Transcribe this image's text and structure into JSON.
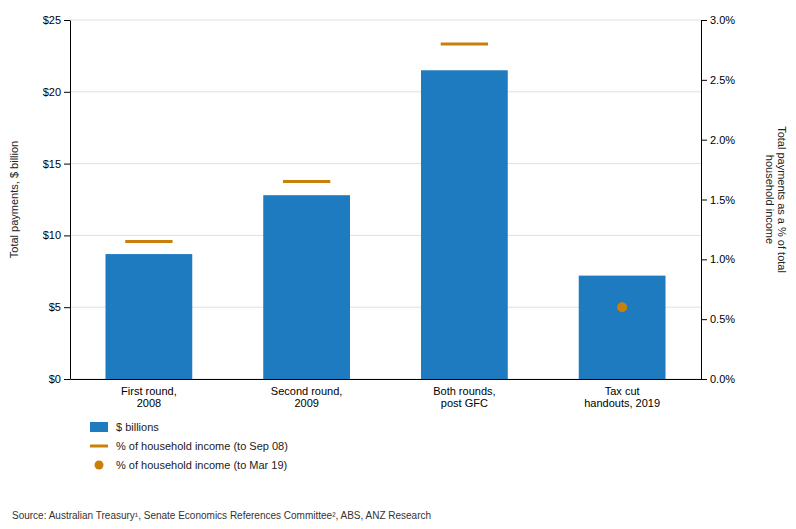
{
  "chart_data": {
    "type": "bar",
    "categories": [
      "First round,\n2008",
      "Second round,\n2009",
      "Both rounds,\npost GFC",
      "Tax cut\nhandouts, 2019"
    ],
    "series": [
      {
        "name": "$ billions",
        "type": "bar",
        "color": "#1f7bbf",
        "values": [
          8.7,
          12.8,
          21.5,
          7.2
        ]
      },
      {
        "name": "% of household income (to Sep 08)",
        "type": "scatter",
        "marker": "dash",
        "axis": "y2",
        "color": "#c8800a",
        "values": [
          0.0115,
          0.0165,
          0.028,
          null
        ]
      },
      {
        "name": "% of household income (to Mar 19)",
        "type": "scatter",
        "marker": "circle",
        "axis": "y2",
        "color": "#c8800a",
        "values": [
          null,
          null,
          null,
          0.006
        ]
      }
    ],
    "ylabel": "Total payments, $ billion",
    "y2label": "Total payments as a % of total\nhousehold income",
    "ylim": [
      0,
      25
    ],
    "yticks": [
      {
        "value": 0,
        "label": "$0"
      },
      {
        "value": 5,
        "label": "$5"
      },
      {
        "value": 10,
        "label": "$10"
      },
      {
        "value": 15,
        "label": "$15"
      },
      {
        "value": 20,
        "label": "$20"
      },
      {
        "value": 25,
        "label": "$25"
      }
    ],
    "y2lim": [
      0,
      0.03
    ],
    "y2ticks": [
      {
        "value": 0.0,
        "label": "0.0%"
      },
      {
        "value": 0.005,
        "label": "0.5%"
      },
      {
        "value": 0.01,
        "label": "1.0%"
      },
      {
        "value": 0.015,
        "label": "1.5%"
      },
      {
        "value": 0.02,
        "label": "2.0%"
      },
      {
        "value": 0.025,
        "label": "2.5%"
      },
      {
        "value": 0.03,
        "label": "3.0%"
      }
    ],
    "grid": true,
    "legend": "bottom",
    "source": "Source: Australian Treasury¹, Senate Economics References Committee², ABS, ANZ Research"
  }
}
